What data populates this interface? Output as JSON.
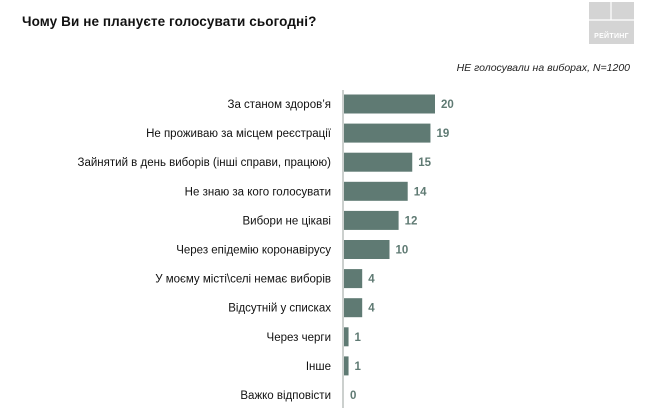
{
  "title": "Чому Ви не плануєте голосувати сьогодні?",
  "subtitle": "НЕ голосували на виборах, N=1200",
  "logo": {
    "text": "РЕЙТИНГ",
    "color": "#d4d4d4"
  },
  "bar_color": "#5f7a73",
  "value_color": "#5f7a73",
  "chart_data": {
    "type": "bar",
    "orientation": "horizontal",
    "categories": [
      "За станом здоров’я",
      "Не проживаю за місцем реєстрації",
      "Зайнятий в день виборів (інші справи, працюю)",
      "Не знаю за кого голосувати",
      "Вибори не цікаві",
      "Через епідемію коронавірусу",
      "У моєму місті\\селі немає виборів",
      "Відсутній у списках",
      "Через черги",
      "Інше",
      "Важко відповісти"
    ],
    "values": [
      20,
      19,
      15,
      14,
      12,
      10,
      4,
      4,
      1,
      1,
      0
    ],
    "xlim": [
      0,
      20
    ],
    "grid": false,
    "legend": "none"
  }
}
